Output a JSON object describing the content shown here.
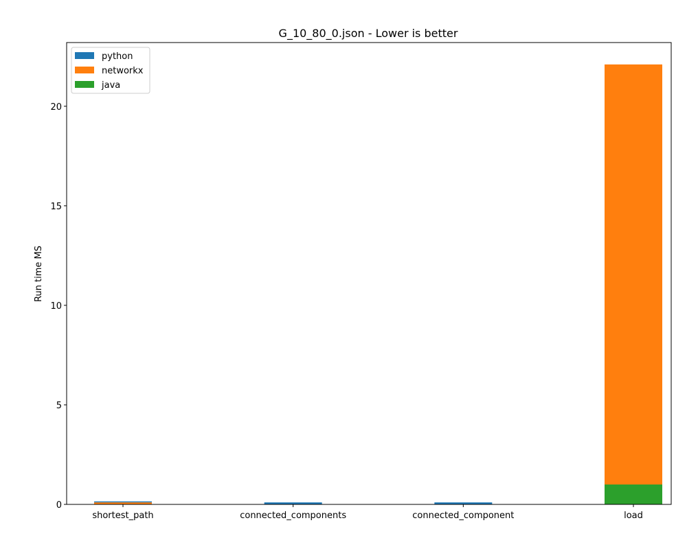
{
  "chart_data": {
    "type": "bar",
    "stacked": true,
    "title": "G_10_80_0.json - Lower is better",
    "xlabel": "",
    "ylabel": "Run time MS",
    "categories": [
      "shortest_path",
      "connected_components",
      "connected_component",
      "load"
    ],
    "series": [
      {
        "name": "python",
        "color": "#1f77b4",
        "values": [
          0.05,
          0.1,
          0.1,
          0
        ]
      },
      {
        "name": "networkx",
        "color": "#ff7f0e",
        "values": [
          0.1,
          0,
          0,
          21.1
        ]
      },
      {
        "name": "java",
        "color": "#2ca02c",
        "values": [
          0,
          0,
          0,
          1.0
        ]
      }
    ],
    "stack_order": [
      "java",
      "networkx",
      "python"
    ],
    "ylim": [
      0,
      23.2
    ],
    "yticks": [
      0,
      5,
      10,
      15,
      20
    ],
    "grid": false,
    "legend_position": "top-left"
  }
}
